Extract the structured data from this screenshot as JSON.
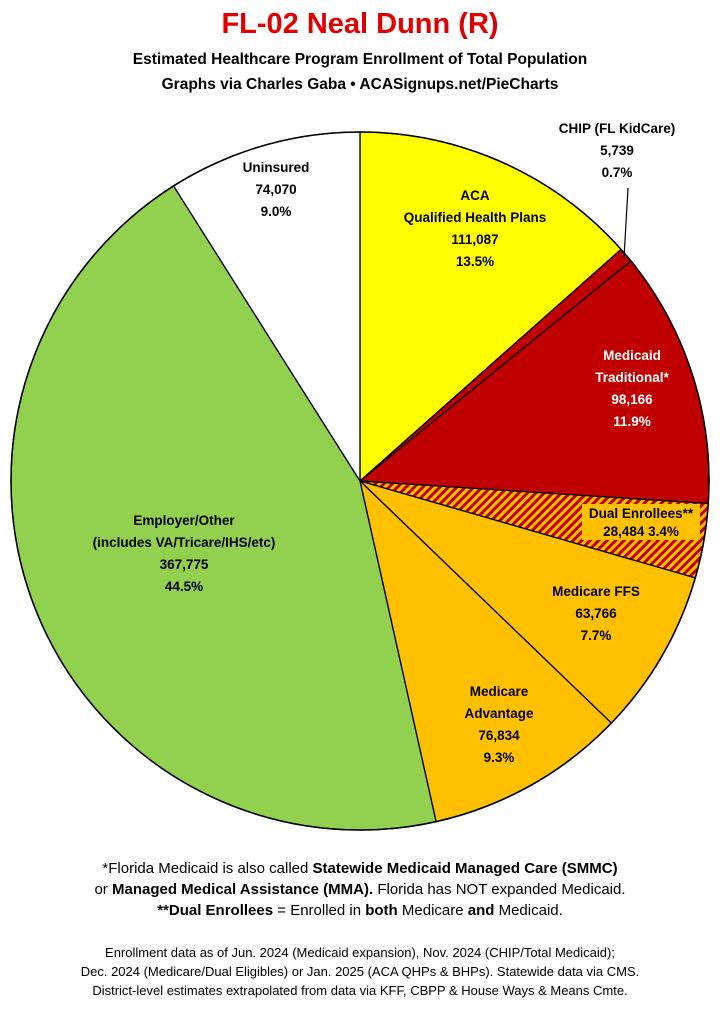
{
  "title": "FL-02 Neal Dunn (R)",
  "subtitle_line1": "Estimated Healthcare Program Enrollment of Total Population",
  "subtitle_line2": "Graphs via Charles Gaba  •  ACASignups.net/PieCharts",
  "colors": {
    "title": "#e00000",
    "aca": "#ffff00",
    "chip": "#c00000",
    "medicaid": "#c00000",
    "dual": "#c00000",
    "dual_hatch": "#ffc000",
    "medicare_ffs": "#ffc000",
    "medicare_advantage": "#ffc000",
    "employer": "#92d050",
    "uninsured": "#ffffff"
  },
  "chart_data": {
    "type": "pie",
    "start_angle_deg": 0,
    "direction": "clockwise",
    "slices": [
      {
        "key": "aca",
        "name": [
          "ACA",
          "Qualified Health Plans"
        ],
        "value": 111087,
        "value_label": "111,087",
        "percent": "13.5%"
      },
      {
        "key": "chip",
        "name": [
          "CHIP (FL KidCare)"
        ],
        "value": 5739,
        "value_label": "5,739",
        "percent": "0.7%"
      },
      {
        "key": "medicaid",
        "name": [
          "Medicaid",
          "Traditional*"
        ],
        "value": 98166,
        "value_label": "98,166",
        "percent": "11.9%"
      },
      {
        "key": "dual",
        "name": [
          "Dual Enrollees**"
        ],
        "value": 28484,
        "value_label": "28,484",
        "percent": "3.4%"
      },
      {
        "key": "medicare_ffs",
        "name": [
          "Medicare FFS"
        ],
        "value": 63766,
        "value_label": "63,766",
        "percent": "7.7%"
      },
      {
        "key": "medicare_advantage",
        "name": [
          "Medicare",
          "Advantage"
        ],
        "value": 76834,
        "value_label": "76,834",
        "percent": "9.3%"
      },
      {
        "key": "employer",
        "name": [
          "Employer/Other",
          "(includes VA/Tricare/IHS/etc)"
        ],
        "value": 367775,
        "value_label": "367,775",
        "percent": "44.5%"
      },
      {
        "key": "uninsured",
        "name": [
          "Uninsured"
        ],
        "value": 74070,
        "value_label": "74,070",
        "percent": "9.0%"
      }
    ]
  },
  "notes": {
    "line1_a": "*Florida Medicaid is also called ",
    "line1_b": "Statewide Medicaid Managed Care (SMMC)",
    "line2_a": "or ",
    "line2_b": "Managed Medical Assistance (MMA).",
    "line2_c": " Florida has NOT expanded Medicaid.",
    "line3_a": "**Dual Enrollees",
    "line3_b": " = Enrolled in ",
    "line3_c": "both",
    "line3_d": " Medicare ",
    "line3_e": "and",
    "line3_f": " Medicaid."
  },
  "footer": {
    "line1": "Enrollment data as of Jun. 2024 (Medicaid expansion), Nov. 2024 (CHIP/Total Medicaid);",
    "line2": "Dec. 2024 (Medicare/Dual Eligibles) or Jan. 2025 (ACA QHPs & BHPs). Statewide data via CMS.",
    "line3": "District-level estimates extrapolated from data via KFF, CBPP & House Ways & Means Cmte."
  }
}
